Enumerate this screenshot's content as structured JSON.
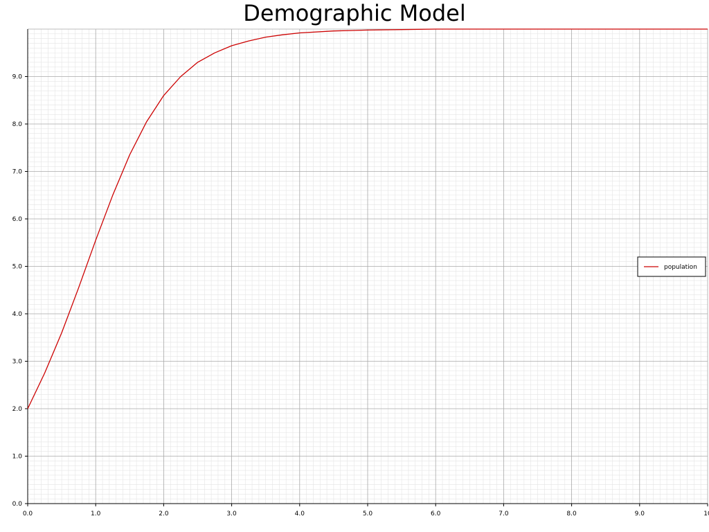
{
  "chart_data": {
    "type": "line",
    "title": "Demographic Model",
    "xlabel": "",
    "ylabel": "",
    "xlim": [
      0,
      10
    ],
    "ylim": [
      0,
      10
    ],
    "x_ticks": [
      "0.0",
      "1.0",
      "2.0",
      "3.0",
      "4.0",
      "5.0",
      "6.0",
      "7.0",
      "8.0",
      "9.0",
      "10"
    ],
    "y_ticks": [
      "0.0",
      "1.0",
      "2.0",
      "3.0",
      "4.0",
      "5.0",
      "6.0",
      "7.0",
      "8.0",
      "9.0"
    ],
    "grid": true,
    "legend_position": "right",
    "series": [
      {
        "name": "population",
        "color": "#cc0000",
        "x": [
          0.0,
          0.25,
          0.5,
          0.75,
          1.0,
          1.25,
          1.5,
          1.75,
          2.0,
          2.25,
          2.5,
          2.75,
          3.0,
          3.25,
          3.5,
          3.75,
          4.0,
          4.5,
          5.0,
          5.5,
          6.0,
          7.0,
          8.0,
          9.0,
          10.0
        ],
        "values": [
          2.0,
          2.75,
          3.6,
          4.55,
          5.55,
          6.5,
          7.35,
          8.05,
          8.6,
          9.0,
          9.3,
          9.5,
          9.65,
          9.75,
          9.83,
          9.88,
          9.92,
          9.96,
          9.98,
          9.99,
          10.0,
          10.0,
          10.0,
          10.0,
          10.0
        ]
      }
    ]
  }
}
